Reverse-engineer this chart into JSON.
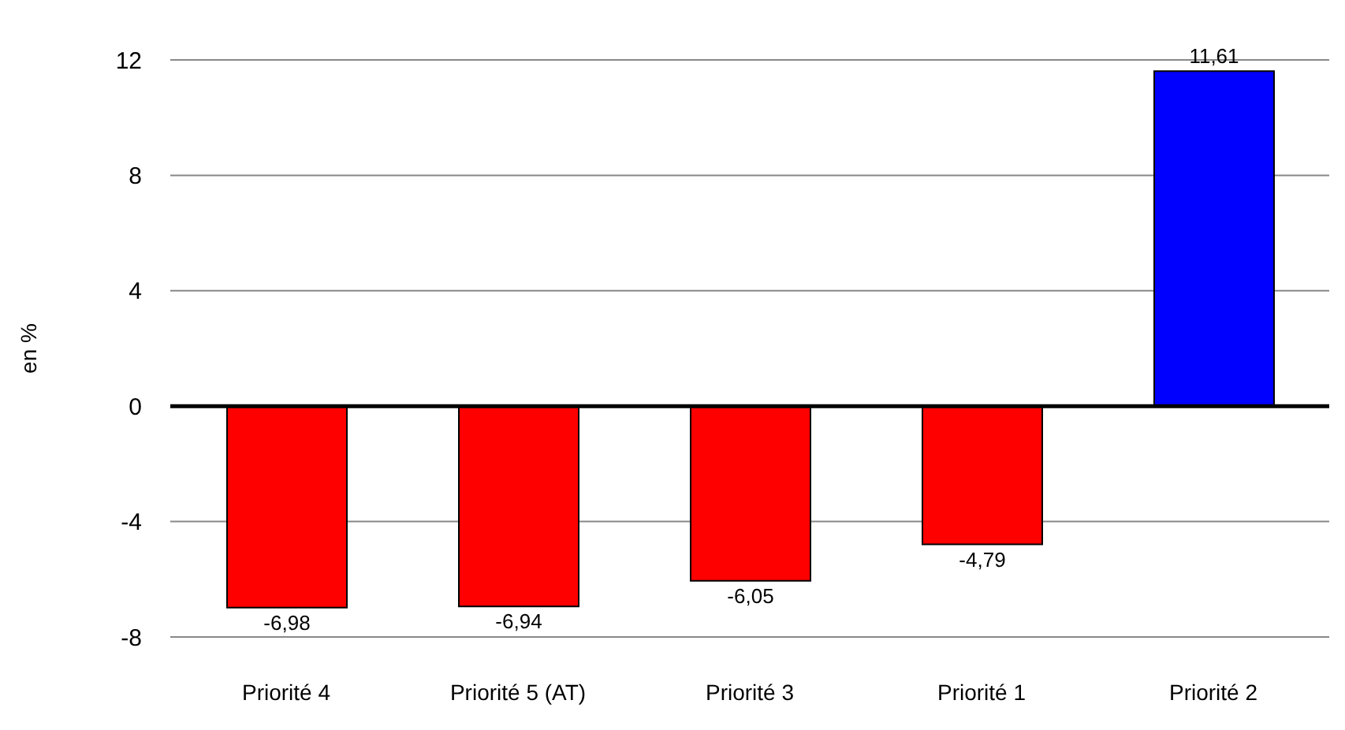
{
  "chart_data": {
    "type": "bar",
    "ylabel": "en %",
    "categories": [
      "Priorité 4",
      "Priorité 5 (AT)",
      "Priorité 3",
      "Priorité 1",
      "Priorité 2"
    ],
    "values": [
      -6.98,
      -6.94,
      -6.05,
      -4.79,
      11.61
    ],
    "value_labels": [
      "-6,98",
      "-6,94",
      "-6,05",
      "-4,79",
      "11,61"
    ],
    "colors": [
      "#ff0000",
      "#ff0000",
      "#ff0000",
      "#ff0000",
      "#0000ff"
    ],
    "ylim": [
      -8,
      12
    ],
    "yticks": [
      -8,
      -4,
      0,
      4,
      8,
      12
    ],
    "grid": "y",
    "ref_lines": [
      {
        "axis": "y",
        "value": 0,
        "color": "#000000"
      }
    ]
  }
}
